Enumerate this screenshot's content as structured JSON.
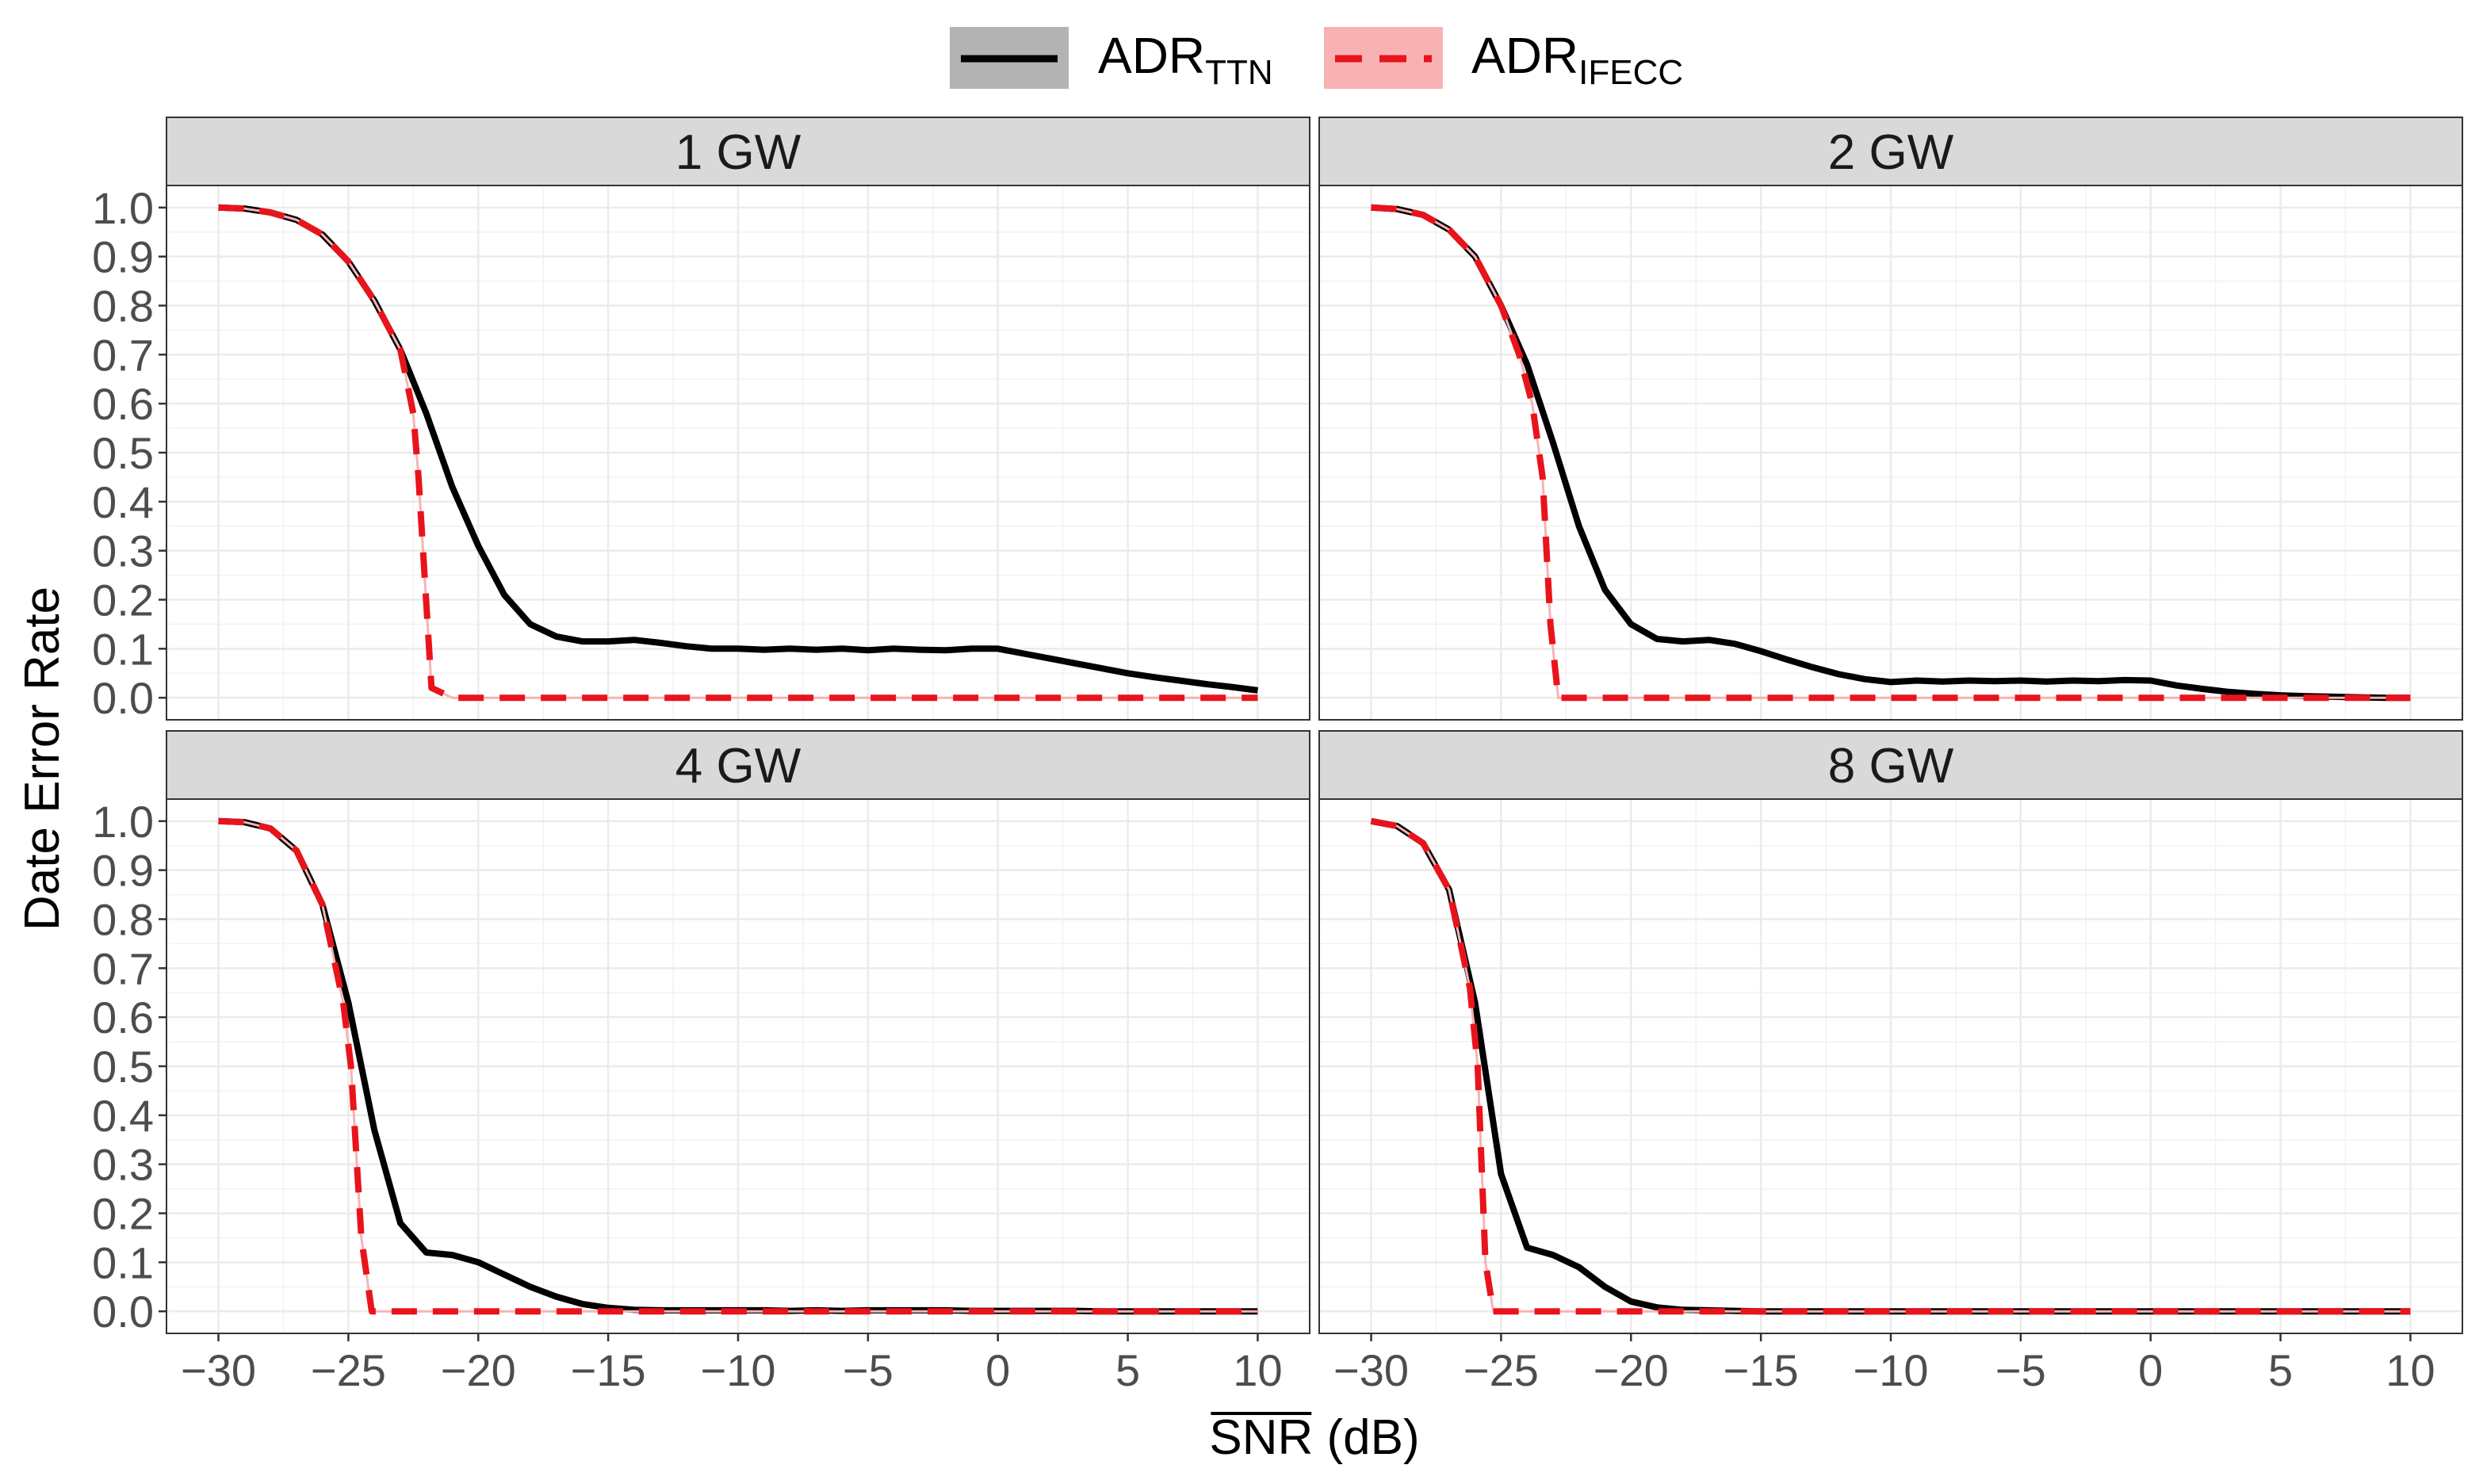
{
  "chart_data": {
    "type": "line",
    "xlabel": "SNR",
    "xlabel_suffix": " (dB)",
    "ylabel": "Date Error Rate",
    "xlim": [
      -32,
      12
    ],
    "ylim": [
      -0.045,
      1.045
    ],
    "x_ticks": [
      -30,
      -25,
      -20,
      -15,
      -10,
      -5,
      0,
      5,
      10
    ],
    "x_tick_labels": [
      "−30",
      "−25",
      "−20",
      "−15",
      "−10",
      "−5",
      "0",
      "5",
      "10"
    ],
    "y_ticks": [
      0.0,
      0.1,
      0.2,
      0.3,
      0.4,
      0.5,
      0.6,
      0.7,
      0.8,
      0.9,
      1.0
    ],
    "y_tick_labels": [
      "0.0",
      "0.1",
      "0.2",
      "0.3",
      "0.4",
      "0.5",
      "0.6",
      "0.7",
      "0.8",
      "0.9",
      "1.0"
    ],
    "legend": {
      "position": "top",
      "entries": [
        {
          "base": "ADR",
          "sub": "TTN",
          "color": "#000000",
          "fill": "#b3b3b3",
          "dash": "solid"
        },
        {
          "base": "ADR",
          "sub": "IFECC",
          "color": "#e8141c",
          "fill": "#f9b2b4",
          "dash": "dashed"
        }
      ]
    },
    "panels": [
      {
        "label": "1 GW",
        "series": [
          {
            "name": "ADR_TTN",
            "points": [
              [
                -30,
                1.0
              ],
              [
                -29,
                0.998
              ],
              [
                -28,
                0.99
              ],
              [
                -27,
                0.975
              ],
              [
                -26,
                0.945
              ],
              [
                -25,
                0.89
              ],
              [
                -24,
                0.81
              ],
              [
                -23,
                0.71
              ],
              [
                -22,
                0.58
              ],
              [
                -21,
                0.43
              ],
              [
                -20,
                0.31
              ],
              [
                -19,
                0.21
              ],
              [
                -18,
                0.15
              ],
              [
                -17,
                0.125
              ],
              [
                -16,
                0.115
              ],
              [
                -15,
                0.115
              ],
              [
                -14,
                0.118
              ],
              [
                -13,
                0.112
              ],
              [
                -12,
                0.105
              ],
              [
                -11,
                0.1
              ],
              [
                -10,
                0.1
              ],
              [
                -9,
                0.098
              ],
              [
                -8,
                0.1
              ],
              [
                -7,
                0.098
              ],
              [
                -6,
                0.1
              ],
              [
                -5,
                0.097
              ],
              [
                -4,
                0.1
              ],
              [
                -3,
                0.098
              ],
              [
                -2,
                0.097
              ],
              [
                -1,
                0.1
              ],
              [
                0,
                0.1
              ],
              [
                1,
                0.09
              ],
              [
                2,
                0.08
              ],
              [
                3,
                0.07
              ],
              [
                4,
                0.06
              ],
              [
                5,
                0.05
              ],
              [
                6,
                0.042
              ],
              [
                7,
                0.035
              ],
              [
                8,
                0.028
              ],
              [
                9,
                0.022
              ],
              [
                10,
                0.015
              ]
            ]
          },
          {
            "name": "ADR_IFECC",
            "points": [
              [
                -30,
                1.0
              ],
              [
                -29,
                0.998
              ],
              [
                -28,
                0.99
              ],
              [
                -27,
                0.975
              ],
              [
                -26,
                0.945
              ],
              [
                -25,
                0.89
              ],
              [
                -24,
                0.81
              ],
              [
                -23,
                0.71
              ],
              [
                -22.5,
                0.58
              ],
              [
                -22.3,
                0.45
              ],
              [
                -21.8,
                0.02
              ],
              [
                -21,
                0.0
              ],
              [
                -20,
                0.0
              ],
              [
                -15,
                0.0
              ],
              [
                -10,
                0.0
              ],
              [
                -5,
                0.0
              ],
              [
                0,
                0.0
              ],
              [
                5,
                0.0
              ],
              [
                10,
                0.0
              ]
            ]
          }
        ]
      },
      {
        "label": "2 GW",
        "series": [
          {
            "name": "ADR_TTN",
            "points": [
              [
                -30,
                1.0
              ],
              [
                -29,
                0.997
              ],
              [
                -28,
                0.985
              ],
              [
                -27,
                0.955
              ],
              [
                -26,
                0.9
              ],
              [
                -25,
                0.8
              ],
              [
                -24,
                0.68
              ],
              [
                -23,
                0.52
              ],
              [
                -22,
                0.35
              ],
              [
                -21,
                0.22
              ],
              [
                -20,
                0.15
              ],
              [
                -19,
                0.12
              ],
              [
                -18,
                0.115
              ],
              [
                -17,
                0.118
              ],
              [
                -16,
                0.11
              ],
              [
                -15,
                0.095
              ],
              [
                -14,
                0.078
              ],
              [
                -13,
                0.062
              ],
              [
                -12,
                0.048
              ],
              [
                -11,
                0.038
              ],
              [
                -10,
                0.032
              ],
              [
                -9,
                0.035
              ],
              [
                -8,
                0.033
              ],
              [
                -7,
                0.035
              ],
              [
                -6,
                0.034
              ],
              [
                -5,
                0.035
              ],
              [
                -4,
                0.033
              ],
              [
                -3,
                0.035
              ],
              [
                -2,
                0.034
              ],
              [
                -1,
                0.036
              ],
              [
                0,
                0.035
              ],
              [
                1,
                0.025
              ],
              [
                2,
                0.018
              ],
              [
                3,
                0.012
              ],
              [
                4,
                0.008
              ],
              [
                5,
                0.005
              ],
              [
                6,
                0.003
              ],
              [
                7,
                0.002
              ],
              [
                8,
                0.001
              ],
              [
                9,
                0.0
              ],
              [
                10,
                0.0
              ]
            ]
          },
          {
            "name": "ADR_IFECC",
            "points": [
              [
                -30,
                1.0
              ],
              [
                -29,
                0.997
              ],
              [
                -28,
                0.985
              ],
              [
                -27,
                0.955
              ],
              [
                -26,
                0.9
              ],
              [
                -25,
                0.8
              ],
              [
                -24.3,
                0.7
              ],
              [
                -23.8,
                0.6
              ],
              [
                -23.4,
                0.45
              ],
              [
                -23.1,
                0.15
              ],
              [
                -22.8,
                0.0
              ],
              [
                -22,
                0.0
              ],
              [
                -20,
                0.0
              ],
              [
                -15,
                0.0
              ],
              [
                -10,
                0.0
              ],
              [
                -5,
                0.0
              ],
              [
                0,
                0.0
              ],
              [
                5,
                0.0
              ],
              [
                10,
                0.0
              ]
            ]
          }
        ]
      },
      {
        "label": "4 GW",
        "series": [
          {
            "name": "ADR_TTN",
            "points": [
              [
                -30,
                1.0
              ],
              [
                -29,
                0.998
              ],
              [
                -28,
                0.985
              ],
              [
                -27,
                0.94
              ],
              [
                -26,
                0.83
              ],
              [
                -25,
                0.63
              ],
              [
                -24,
                0.37
              ],
              [
                -23,
                0.18
              ],
              [
                -22,
                0.12
              ],
              [
                -21,
                0.115
              ],
              [
                -20,
                0.1
              ],
              [
                -19,
                0.075
              ],
              [
                -18,
                0.05
              ],
              [
                -17,
                0.03
              ],
              [
                -16,
                0.015
              ],
              [
                -15,
                0.007
              ],
              [
                -14,
                0.003
              ],
              [
                -13,
                0.002
              ],
              [
                -12,
                0.002
              ],
              [
                -11,
                0.002
              ],
              [
                -10,
                0.002
              ],
              [
                -9,
                0.002
              ],
              [
                -8,
                0.001
              ],
              [
                -7,
                0.002
              ],
              [
                -6,
                0.001
              ],
              [
                -5,
                0.002
              ],
              [
                -4,
                0.002
              ],
              [
                -3,
                0.002
              ],
              [
                -2,
                0.002
              ],
              [
                -1,
                0.001
              ],
              [
                0,
                0.001
              ],
              [
                1,
                0.001
              ],
              [
                2,
                0.001
              ],
              [
                3,
                0.001
              ],
              [
                4,
                0.0
              ],
              [
                5,
                0.0
              ],
              [
                6,
                0.0
              ],
              [
                7,
                0.0
              ],
              [
                8,
                0.0
              ],
              [
                9,
                0.0
              ],
              [
                10,
                0.0
              ]
            ]
          },
          {
            "name": "ADR_IFECC",
            "points": [
              [
                -30,
                1.0
              ],
              [
                -29,
                0.998
              ],
              [
                -28,
                0.985
              ],
              [
                -27,
                0.94
              ],
              [
                -26,
                0.83
              ],
              [
                -25.2,
                0.63
              ],
              [
                -24.9,
                0.5
              ],
              [
                -24.5,
                0.15
              ],
              [
                -24.1,
                0.0
              ],
              [
                -23,
                0.0
              ],
              [
                -20,
                0.0
              ],
              [
                -15,
                0.0
              ],
              [
                -10,
                0.0
              ],
              [
                -5,
                0.0
              ],
              [
                0,
                0.0
              ],
              [
                5,
                0.0
              ],
              [
                10,
                0.0
              ]
            ]
          }
        ]
      },
      {
        "label": "8 GW",
        "series": [
          {
            "name": "ADR_TTN",
            "points": [
              [
                -30,
                1.0
              ],
              [
                -29,
                0.99
              ],
              [
                -28,
                0.955
              ],
              [
                -27,
                0.86
              ],
              [
                -26,
                0.63
              ],
              [
                -25,
                0.28
              ],
              [
                -24,
                0.13
              ],
              [
                -23,
                0.115
              ],
              [
                -22,
                0.09
              ],
              [
                -21,
                0.05
              ],
              [
                -20,
                0.02
              ],
              [
                -19,
                0.008
              ],
              [
                -18,
                0.003
              ],
              [
                -17,
                0.002
              ],
              [
                -16,
                0.001
              ],
              [
                -15,
                0.0
              ],
              [
                -10,
                0.0
              ],
              [
                -5,
                0.0
              ],
              [
                0,
                0.0
              ],
              [
                5,
                0.0
              ],
              [
                10,
                0.0
              ]
            ]
          },
          {
            "name": "ADR_IFECC",
            "points": [
              [
                -30,
                1.0
              ],
              [
                -29,
                0.99
              ],
              [
                -28,
                0.955
              ],
              [
                -27,
                0.86
              ],
              [
                -26.2,
                0.66
              ],
              [
                -25.9,
                0.5
              ],
              [
                -25.6,
                0.1
              ],
              [
                -25.3,
                0.0
              ],
              [
                -24,
                0.0
              ],
              [
                -20,
                0.0
              ],
              [
                -15,
                0.0
              ],
              [
                -10,
                0.0
              ],
              [
                -5,
                0.0
              ],
              [
                0,
                0.0
              ],
              [
                5,
                0.0
              ],
              [
                10,
                0.0
              ]
            ]
          }
        ]
      }
    ]
  }
}
